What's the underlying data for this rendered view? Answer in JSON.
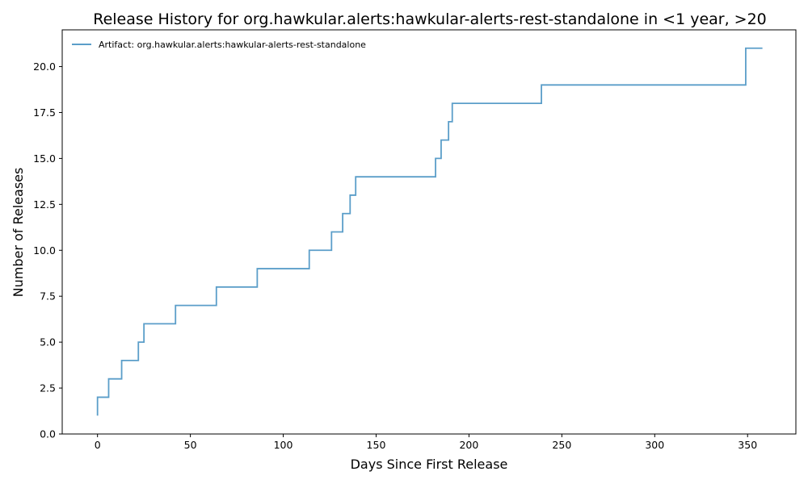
{
  "chart_data": {
    "type": "line",
    "step": "post",
    "title": "Release History for org.hawkular.alerts:hawkular-alerts-rest-standalone in <1 year, >20",
    "xlabel": "Days Since First Release",
    "ylabel": "Number of Releases",
    "xlim": [
      -19,
      376
    ],
    "ylim": [
      0,
      22
    ],
    "xticks": [
      0,
      50,
      100,
      150,
      200,
      250,
      300,
      350
    ],
    "xtick_labels": [
      "0",
      "50",
      "100",
      "150",
      "200",
      "250",
      "300",
      "350"
    ],
    "yticks": [
      0,
      2.5,
      5,
      7.5,
      10,
      12.5,
      15,
      17.5,
      20
    ],
    "ytick_labels": [
      "0.0",
      "2.5",
      "5.0",
      "7.5",
      "10.0",
      "12.5",
      "15.0",
      "17.5",
      "20.0"
    ],
    "grid": false,
    "legend_position": "top-left",
    "color": "#5b9ec9",
    "series": [
      {
        "name": "Artifact: org.hawkular.alerts:hawkular-alerts-rest-standalone",
        "x": [
          0,
          0,
          6,
          13,
          22,
          25,
          42,
          64,
          86,
          114,
          126,
          132,
          136,
          139,
          182,
          185,
          189,
          191,
          239,
          349,
          358
        ],
        "y": [
          1,
          2,
          3,
          4,
          5,
          6,
          7,
          8,
          9,
          10,
          11,
          12,
          13,
          14,
          15,
          16,
          17,
          18,
          19,
          21,
          21
        ]
      }
    ]
  }
}
